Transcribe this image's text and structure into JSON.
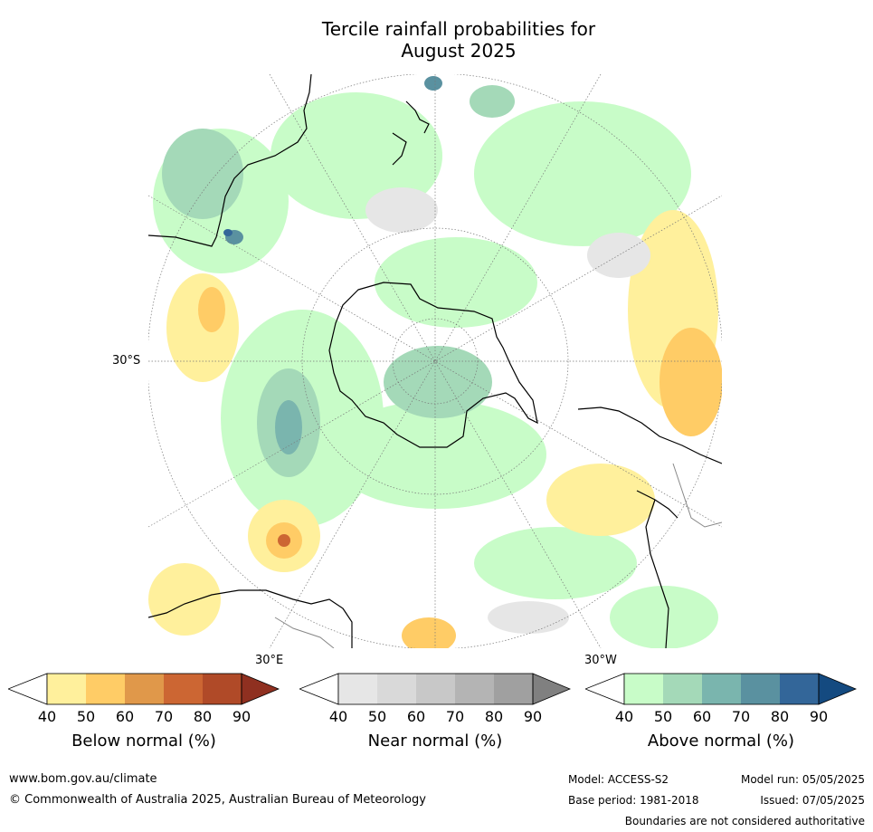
{
  "title_line1": "Tercile rainfall probabilities for",
  "title_line2": "August 2025",
  "map": {
    "lat_label": "30°S",
    "lon_label_east": "30°E",
    "lon_label_west": "30°W"
  },
  "colorbars": [
    {
      "title": "Below normal (%)",
      "ticks": [
        "40",
        "50",
        "60",
        "70",
        "80",
        "90"
      ],
      "colors": [
        "#fff09c",
        "#ffcc66",
        "#e0984a",
        "#cc6633",
        "#b04a28",
        "#8f3020"
      ]
    },
    {
      "title": "Near normal (%)",
      "ticks": [
        "40",
        "50",
        "60",
        "70",
        "80",
        "90"
      ],
      "colors": [
        "#e6e6e6",
        "#d9d9d9",
        "#c8c8c8",
        "#b4b4b4",
        "#a0a0a0",
        "#808080"
      ]
    },
    {
      "title": "Above normal (%)",
      "ticks": [
        "40",
        "50",
        "60",
        "70",
        "80",
        "90"
      ],
      "colors": [
        "#c8fcc8",
        "#a4d9b8",
        "#7ab5ae",
        "#5a91a0",
        "#336699",
        "#144a80"
      ]
    }
  ],
  "footer": {
    "website": "www.bom.gov.au/climate",
    "copyright": "© Commonwealth of Australia 2025, Australian Bureau of Meteorology",
    "model": "Model: ACCESS-S2",
    "model_run": "Model run: 05/05/2025",
    "base_period": "Base period: 1981-2018",
    "issued": "Issued: 07/05/2025",
    "disclaimer": "Boundaries are not considered authoritative"
  }
}
